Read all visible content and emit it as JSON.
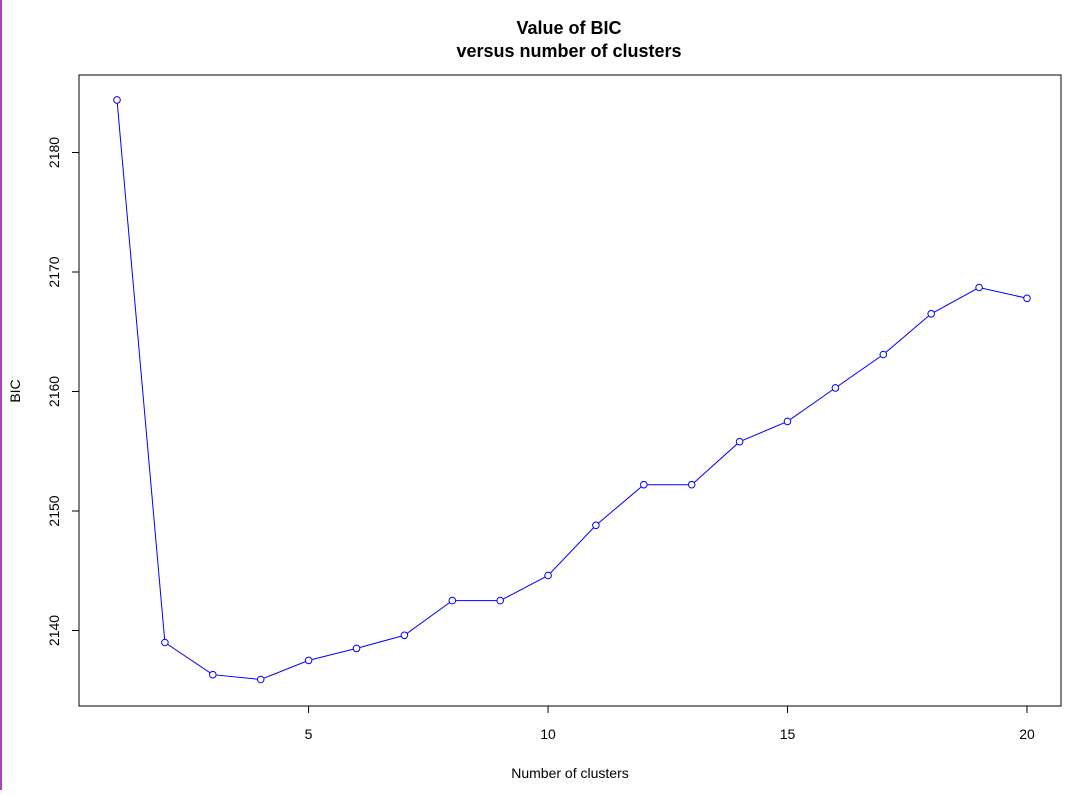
{
  "chart_data": {
    "type": "line",
    "title": "Value of BIC",
    "subtitle": "versus number of clusters",
    "xlabel": "Number of clusters",
    "ylabel": "BIC",
    "xlim": [
      1,
      20
    ],
    "ylim": [
      2136,
      2185
    ],
    "x_ticks": [
      5,
      10,
      15,
      20
    ],
    "y_ticks": [
      2140,
      2150,
      2160,
      2170,
      2180
    ],
    "grid": false,
    "series": [
      {
        "color": "#0000ff",
        "marker": "open-circle",
        "x": [
          1,
          2,
          3,
          4,
          5,
          6,
          7,
          8,
          9,
          10,
          11,
          12,
          13,
          14,
          15,
          16,
          17,
          18,
          19,
          20
        ],
        "y": [
          2184.4,
          2139.0,
          2136.3,
          2135.9,
          2137.5,
          2138.5,
          2139.6,
          2142.5,
          2142.5,
          2144.6,
          2148.8,
          2152.2,
          2152.2,
          2155.8,
          2157.5,
          2160.3,
          2163.1,
          2166.5,
          2168.7,
          2167.8
        ]
      }
    ]
  },
  "colors": {
    "series": "#0000ff",
    "axis": "#000000",
    "background": "#ffffff",
    "left_rule": "#b040c0"
  }
}
